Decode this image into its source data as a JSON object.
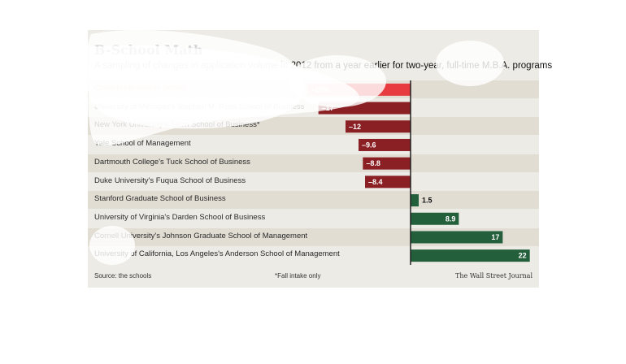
{
  "chart_data": {
    "type": "bar",
    "orientation": "horizontal",
    "title": "B-School Math",
    "subtitle": "A sampling of changes in application volume in 2012 from a year earlier for two-year, full-time M.B.A. programs",
    "categories": [
      "Columbia Business School",
      "University of Michigan's Stephen M. Ross School of Business",
      "New York University's Stern School of Business*",
      "Yale School of Management",
      "Dartmouth College's Tuck School of Business",
      "Duke University's Fuqua School of Business",
      "Stanford Graduate School of Business",
      "University of Virginia's Darden School of Business",
      "Cornell University's Johnson Graduate School of Management",
      "University of California, Los Angeles's Anderson School of Management"
    ],
    "values": [
      -19,
      -17,
      -12,
      -9.6,
      -8.8,
      -8.4,
      1.5,
      8.9,
      17,
      22
    ],
    "value_labels": [
      "–19%",
      "–17",
      "–12",
      "–9.6",
      "–8.8",
      "–8.4",
      "1.5",
      "8.9",
      "17",
      "22"
    ],
    "xlim": [
      -20,
      22.5
    ],
    "colors": {
      "negative": "#8a1f24",
      "negative_highlight": "#e83b3f",
      "positive": "#245f3c"
    },
    "highlight_index": 0,
    "source": "Source: the schools",
    "note": "*Fall intake only",
    "credit": "The Wall Street Journal"
  }
}
